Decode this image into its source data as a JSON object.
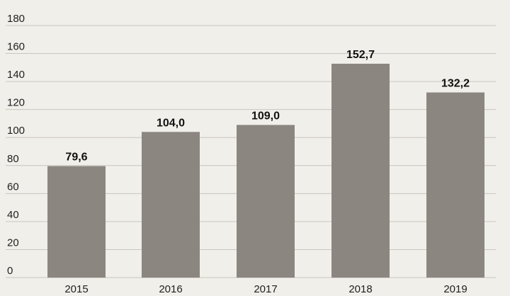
{
  "chart_data": {
    "type": "bar",
    "categories": [
      "2015",
      "2016",
      "2017",
      "2018",
      "2019"
    ],
    "values": [
      79.6,
      104.0,
      109.0,
      152.7,
      132.2
    ],
    "data_labels": [
      "79,6",
      "104,0",
      "109,0",
      "152,7",
      "132,2"
    ],
    "title": "",
    "xlabel": "",
    "ylabel": "",
    "ylim": [
      0,
      180
    ],
    "yticks": [
      0,
      20,
      40,
      60,
      80,
      100,
      120,
      140,
      160,
      180
    ],
    "ytick_labels": [
      "0",
      "20",
      "40",
      "60",
      "80",
      "100",
      "120",
      "140",
      "160",
      "180"
    ],
    "grid": true,
    "legend": "none",
    "bar_color": "#8b8680",
    "grid_color": "#c9c6bf",
    "background_color": "#f1efea"
  }
}
